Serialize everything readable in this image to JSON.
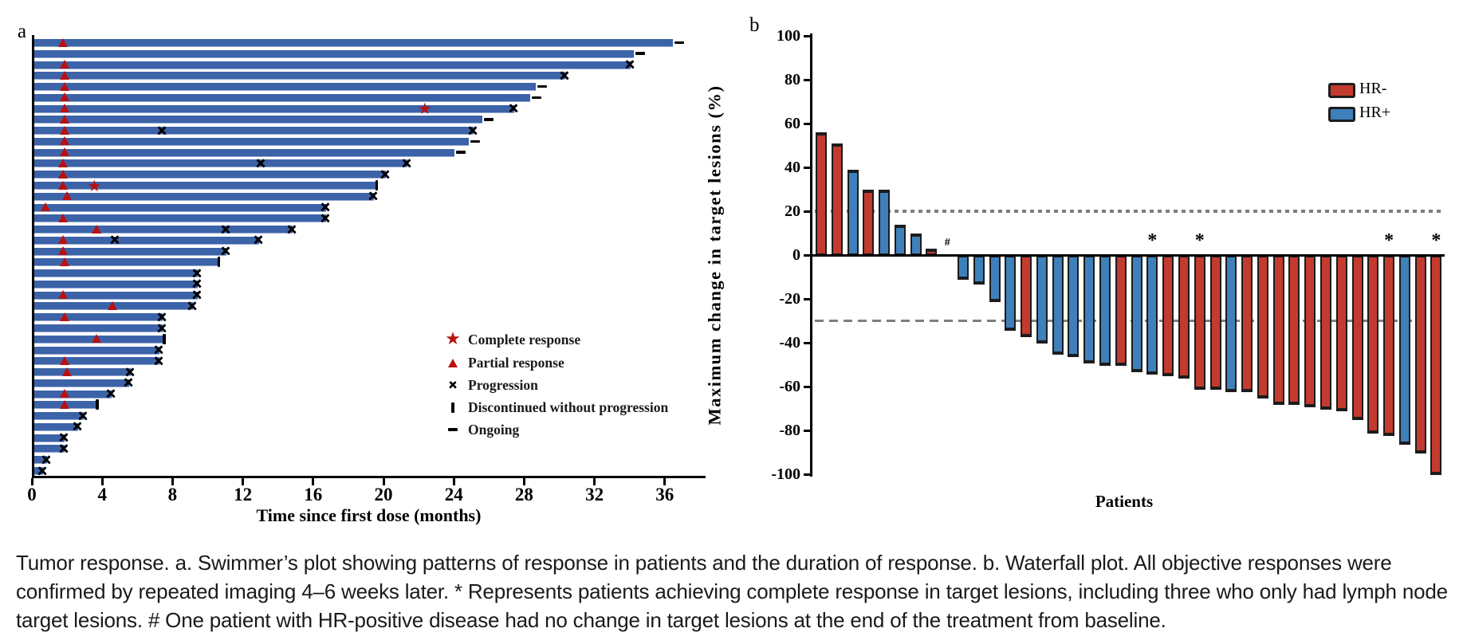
{
  "caption": "Tumor response. a. Swimmer’s plot showing patterns of response in patients and the duration of response. b. Waterfall plot. All objective responses were confirmed by repeated imaging 4–6 weeks later. * Represents patients achieving complete response in target lesions, including three who only had lymph node target lesions. # One patient with HR-positive disease had no change in target lesions at the end of the treatment from baseline.",
  "colors": {
    "swimmer_bar_blue": "#3c63a8",
    "response_marker_red": "#b91111",
    "progression_marker_black": "#000000",
    "waterfall_red": "#c23b2e",
    "waterfall_blue": "#3e80ba",
    "reference_line_gray": "#7e7e7e"
  },
  "chart_data": [
    {
      "type": "bar",
      "name": "swimmer-plot",
      "orientation": "horizontal",
      "panel_label": "a",
      "xlabel": "Time since first dose (months)",
      "xticks": [
        0,
        4,
        8,
        12,
        16,
        20,
        24,
        28,
        32,
        36
      ],
      "xlim": [
        0,
        38.2
      ],
      "bar_color": "#3c63a8",
      "legend_position": "lower-right-inside",
      "legend": [
        {
          "symbol": "star",
          "color": "#b91111",
          "label": "Complete response"
        },
        {
          "symbol": "triangle",
          "color": "#b91111",
          "label": "Partial response"
        },
        {
          "symbol": "x",
          "color": "#000000",
          "label": "Progression"
        },
        {
          "symbol": "vbar",
          "color": "#000000",
          "label": "Discontinued without progression"
        },
        {
          "symbol": "dash",
          "color": "#000000",
          "label": "Ongoing"
        }
      ],
      "patients": [
        {
          "duration": 36.4,
          "end": "ongoing",
          "pr": 1.8
        },
        {
          "duration": 34.2,
          "end": "ongoing"
        },
        {
          "duration": 34.0,
          "end": "progression",
          "pr": 1.9
        },
        {
          "duration": 30.3,
          "end": "progression",
          "pr": 1.9
        },
        {
          "duration": 28.6,
          "end": "ongoing",
          "pr": 1.9
        },
        {
          "duration": 28.3,
          "end": "ongoing",
          "pr": 1.9
        },
        {
          "duration": 27.4,
          "end": "progression",
          "pr": 1.9,
          "cr": 22.4
        },
        {
          "duration": 25.6,
          "end": "ongoing",
          "pr": 1.9
        },
        {
          "duration": 25.1,
          "end": "progression",
          "pr": 1.9,
          "progression_marks": [
            7.4
          ]
        },
        {
          "duration": 24.8,
          "end": "ongoing",
          "pr": 1.9
        },
        {
          "duration": 24.0,
          "end": "ongoing",
          "pr": 1.9
        },
        {
          "duration": 21.3,
          "end": "progression",
          "pr": 1.8,
          "progression_marks": [
            13.0
          ]
        },
        {
          "duration": 20.1,
          "end": "progression",
          "pr": 1.8
        },
        {
          "duration": 19.5,
          "end": "discontinued",
          "pr": 1.8,
          "cr": 3.6
        },
        {
          "duration": 19.4,
          "end": "progression",
          "pr": 2.0
        },
        {
          "duration": 16.7,
          "end": "progression",
          "pr": 0.8
        },
        {
          "duration": 16.7,
          "end": "progression",
          "pr": 1.8
        },
        {
          "duration": 14.8,
          "end": "progression",
          "pr": 3.7,
          "progression_marks": [
            11.0
          ]
        },
        {
          "duration": 12.9,
          "end": "progression",
          "pr": 1.8,
          "progression_marks": [
            4.7
          ]
        },
        {
          "duration": 11.0,
          "end": "progression",
          "pr": 1.8
        },
        {
          "duration": 10.5,
          "end": "discontinued",
          "pr": 1.9
        },
        {
          "duration": 9.4,
          "end": "progression"
        },
        {
          "duration": 9.4,
          "end": "progression"
        },
        {
          "duration": 9.4,
          "end": "progression",
          "pr": 1.8
        },
        {
          "duration": 9.1,
          "end": "progression",
          "pr": 4.6
        },
        {
          "duration": 7.4,
          "end": "progression",
          "pr": 1.9
        },
        {
          "duration": 7.4,
          "end": "progression"
        },
        {
          "duration": 7.4,
          "end": "discontinued",
          "pr": 3.7
        },
        {
          "duration": 7.2,
          "end": "progression"
        },
        {
          "duration": 7.2,
          "end": "progression",
          "pr": 1.9
        },
        {
          "duration": 5.6,
          "end": "progression",
          "pr": 2.0
        },
        {
          "duration": 5.5,
          "end": "progression"
        },
        {
          "duration": 4.5,
          "end": "progression",
          "pr": 1.9
        },
        {
          "duration": 3.6,
          "end": "discontinued",
          "pr": 1.9
        },
        {
          "duration": 2.9,
          "end": "progression"
        },
        {
          "duration": 2.6,
          "end": "progression"
        },
        {
          "duration": 1.8,
          "end": "progression"
        },
        {
          "duration": 1.8,
          "end": "progression"
        },
        {
          "duration": 0.8,
          "end": "progression"
        },
        {
          "duration": 0.6,
          "end": "progression"
        }
      ]
    },
    {
      "type": "bar",
      "name": "waterfall-plot",
      "panel_label": "b",
      "ylabel": "Maximum change in target lesions (%)",
      "xlabel": "Patients",
      "ylim": [
        -100,
        100
      ],
      "yticks": [
        100,
        80,
        60,
        40,
        20,
        0,
        -20,
        -40,
        -60,
        -80,
        -100
      ],
      "reference_lines": [
        {
          "value": 20,
          "style": "dotted"
        },
        {
          "value": -30,
          "style": "dashed"
        }
      ],
      "legend_position": "upper-right-inside",
      "legend": [
        {
          "label": "HR-",
          "color": "#c23b2e"
        },
        {
          "label": "HR+",
          "color": "#3e80ba"
        }
      ],
      "patients": [
        {
          "value": 56,
          "group": "HR-"
        },
        {
          "value": 51,
          "group": "HR-"
        },
        {
          "value": 39,
          "group": "HR+"
        },
        {
          "value": 30,
          "group": "HR-"
        },
        {
          "value": 30,
          "group": "HR+"
        },
        {
          "value": 14,
          "group": "HR+"
        },
        {
          "value": 10,
          "group": "HR+"
        },
        {
          "value": 3,
          "group": "HR-"
        },
        {
          "value": 0,
          "group": "HR+",
          "annotation": "#"
        },
        {
          "value": -11,
          "group": "HR+"
        },
        {
          "value": -13,
          "group": "HR+"
        },
        {
          "value": -21,
          "group": "HR+"
        },
        {
          "value": -34,
          "group": "HR+"
        },
        {
          "value": -37,
          "group": "HR-"
        },
        {
          "value": -40,
          "group": "HR+"
        },
        {
          "value": -45,
          "group": "HR+"
        },
        {
          "value": -46,
          "group": "HR+"
        },
        {
          "value": -49,
          "group": "HR+"
        },
        {
          "value": -50,
          "group": "HR+"
        },
        {
          "value": -50,
          "group": "HR-"
        },
        {
          "value": -53,
          "group": "HR+"
        },
        {
          "value": -54,
          "group": "HR+",
          "annotation": "*"
        },
        {
          "value": -55,
          "group": "HR-"
        },
        {
          "value": -56,
          "group": "HR-"
        },
        {
          "value": -61,
          "group": "HR-",
          "annotation": "*"
        },
        {
          "value": -61,
          "group": "HR-"
        },
        {
          "value": -62,
          "group": "HR+"
        },
        {
          "value": -62,
          "group": "HR-"
        },
        {
          "value": -65,
          "group": "HR-"
        },
        {
          "value": -68,
          "group": "HR-"
        },
        {
          "value": -68,
          "group": "HR-"
        },
        {
          "value": -69,
          "group": "HR-"
        },
        {
          "value": -70,
          "group": "HR-"
        },
        {
          "value": -71,
          "group": "HR-"
        },
        {
          "value": -75,
          "group": "HR-"
        },
        {
          "value": -81,
          "group": "HR-"
        },
        {
          "value": -82,
          "group": "HR-",
          "annotation": "*"
        },
        {
          "value": -86,
          "group": "HR+"
        },
        {
          "value": -90,
          "group": "HR-"
        },
        {
          "value": -100,
          "group": "HR-",
          "annotation": "*"
        }
      ]
    }
  ]
}
